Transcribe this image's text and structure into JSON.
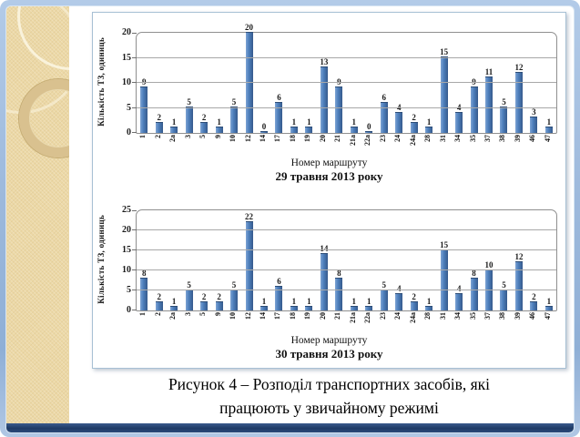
{
  "slide": {
    "caption_line1": "Рисунок 4 – Розподіл транспортних засобів, які",
    "caption_line2": "працюють у звичайному режимі"
  },
  "colors": {
    "bar": "#4f81bd",
    "frame_blue": "#9db9dc",
    "bottom_bar_navy": "#1e3a66",
    "side_band_tan": "#ecd8a6",
    "chart_box_border": "#a7c0d4",
    "gridline": "#a8a8a8"
  },
  "chart_data": [
    {
      "type": "bar",
      "title": "29 травня 2013 року",
      "xlabel": "Номер маршруту",
      "ylabel": "Кількість ТЗ, одиниць",
      "categories": [
        "1",
        "2",
        "2а",
        "3",
        "5",
        "9",
        "10",
        "12",
        "14",
        "17",
        "18",
        "19",
        "20",
        "21",
        "21а",
        "22а",
        "23",
        "24",
        "24а",
        "28",
        "31",
        "34",
        "35",
        "37",
        "38",
        "39",
        "46",
        "47"
      ],
      "values": [
        9,
        2,
        1,
        5,
        2,
        1,
        5,
        20,
        0,
        6,
        1,
        1,
        13,
        9,
        1,
        0,
        6,
        4,
        2,
        1,
        15,
        4,
        9,
        11,
        5,
        12,
        3,
        1
      ],
      "ylim": [
        0,
        20
      ],
      "ytick_step": 5,
      "grid": true,
      "legend_position": "none"
    },
    {
      "type": "bar",
      "title": "30 травня 2013 року",
      "xlabel": "Номер маршруту",
      "ylabel": "Кількість ТЗ, одиниць",
      "categories": [
        "1",
        "2",
        "2а",
        "3",
        "5",
        "9",
        "10",
        "12",
        "14",
        "17",
        "18",
        "19",
        "20",
        "21",
        "21а",
        "22а",
        "23",
        "24",
        "24а",
        "28",
        "31",
        "34",
        "35",
        "37",
        "38",
        "39",
        "46",
        "47"
      ],
      "values": [
        8,
        2,
        1,
        5,
        2,
        2,
        5,
        22,
        1,
        6,
        1,
        1,
        14,
        8,
        1,
        1,
        5,
        4,
        2,
        1,
        15,
        4,
        8,
        10,
        5,
        12,
        2,
        1
      ],
      "ylim": [
        0,
        25
      ],
      "ytick_step": 5,
      "grid": true,
      "legend_position": "none"
    }
  ]
}
